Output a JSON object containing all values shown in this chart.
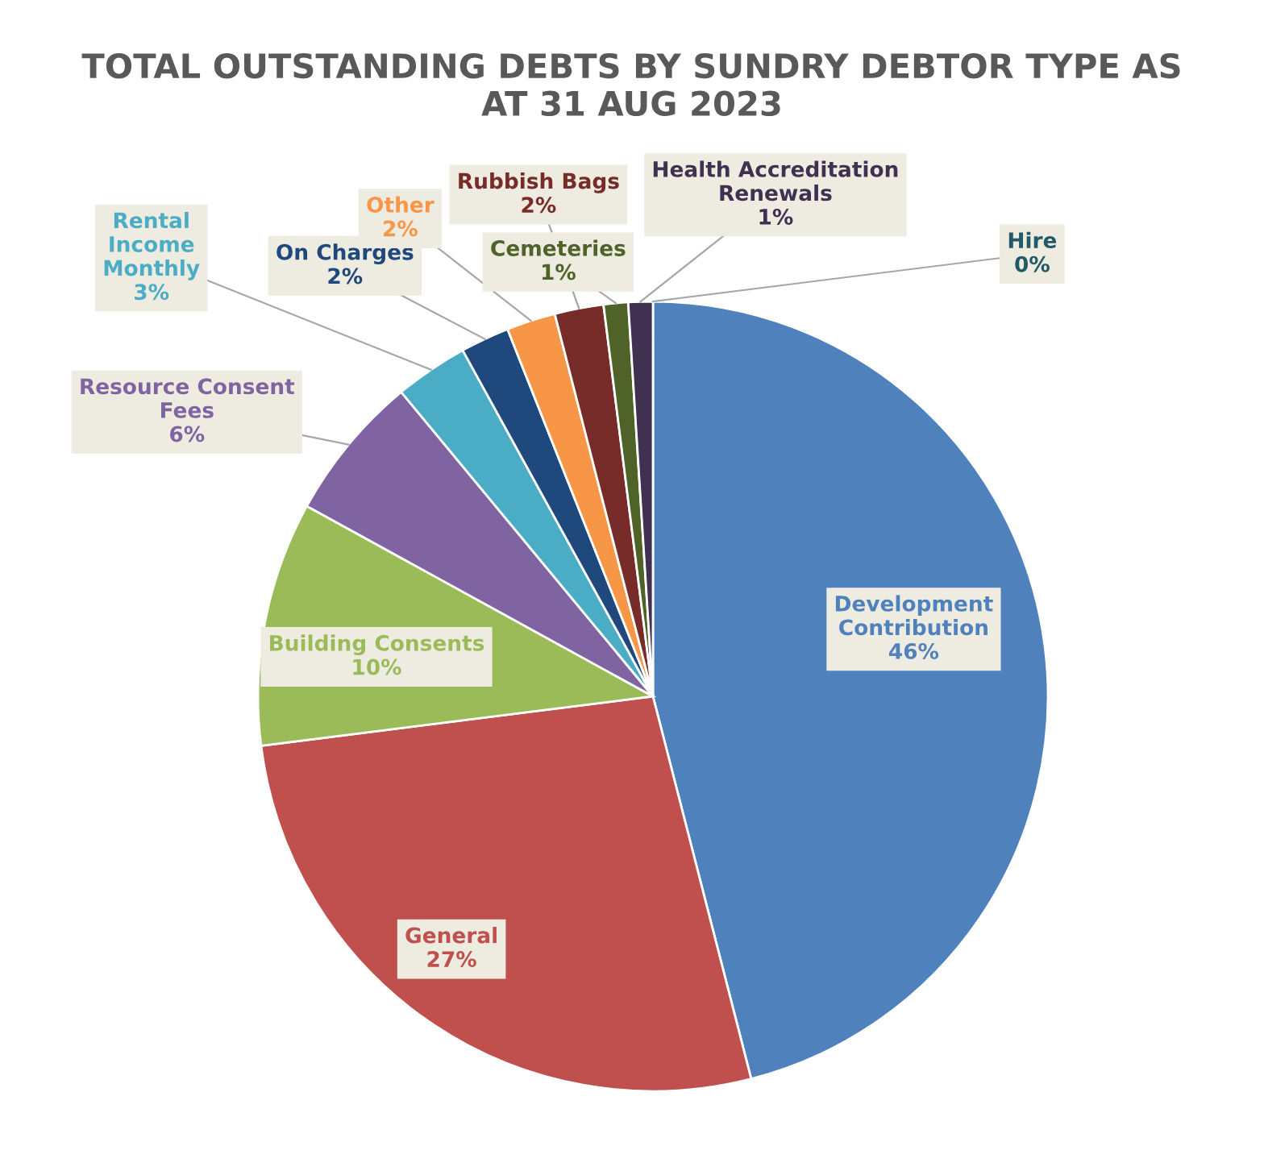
{
  "chart_data": {
    "type": "pie",
    "title": "TOTAL OUTSTANDING DEBTS BY SUNDRY DEBTOR TYPE AS\nAT 31 AUG 2023",
    "categories": [
      "Development\nContribution",
      "General",
      "Building Consents",
      "Resource Consent\nFees",
      "Rental\nIncome\nMonthly",
      "On Charges",
      "Other",
      "Rubbish Bags",
      "Cemeteries",
      "Health Accreditation\nRenewals",
      "Hire"
    ],
    "values": [
      46,
      27,
      10,
      6,
      3,
      2,
      2,
      2,
      1,
      1,
      0
    ],
    "value_labels": [
      "46%",
      "27%",
      "10%",
      "6%",
      "3%",
      "2%",
      "2%",
      "2%",
      "1%",
      "1%",
      "0%"
    ],
    "colors": [
      "#4f81bd",
      "#c0504d",
      "#9bbb59",
      "#8064a2",
      "#4bacc6",
      "#1f497d",
      "#f79646",
      "#772c2a",
      "#4f6228",
      "#403151",
      "#215968"
    ],
    "legend": false
  }
}
